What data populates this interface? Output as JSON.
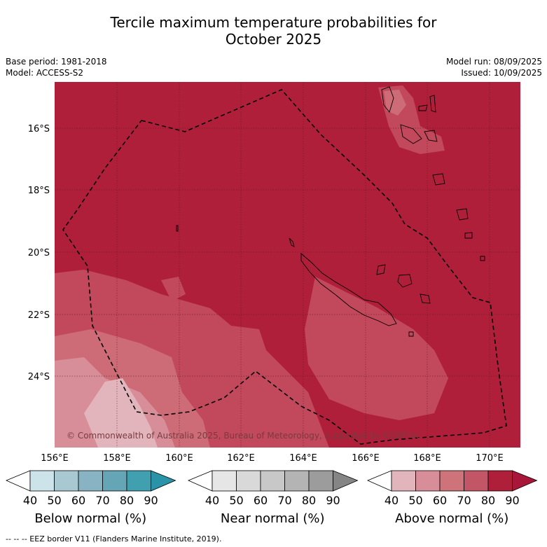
{
  "title_line1": "Tercile maximum temperature probabilities for",
  "title_line2": "October 2025",
  "base_period": "Base period: 1981-2018",
  "model": "Model: ACCESS-S2",
  "model_run": "Model run: 08/09/2025",
  "issued": "Issued: 10/09/2025",
  "copyright": "© Commonwealth of Australia 2025, Bureau of Meteorology, supported by COSPPac",
  "lon_labels": [
    "156°E",
    "158°E",
    "160°E",
    "162°E",
    "164°E",
    "166°E",
    "168°E",
    "170°E"
  ],
  "lat_labels": [
    "16°S",
    "18°S",
    "20°S",
    "22°S",
    "24°S"
  ],
  "colorbars": [
    {
      "label": "Below normal (%)",
      "ticks": [
        "40",
        "50",
        "60",
        "70",
        "80",
        "90"
      ],
      "colors": [
        "#ffffff",
        "#cde3ea",
        "#a8c9d1",
        "#87b3c2",
        "#66a5b5",
        "#41a0b0",
        "#2a93a8"
      ]
    },
    {
      "label": "Near normal (%)",
      "ticks": [
        "40",
        "50",
        "60",
        "70",
        "80",
        "90"
      ],
      "colors": [
        "#ffffff",
        "#e6e6e6",
        "#d9d9d9",
        "#c8c8c8",
        "#b4b4b4",
        "#9c9c9c",
        "#858585"
      ]
    },
    {
      "label": "Above normal (%)",
      "ticks": [
        "40",
        "50",
        "60",
        "70",
        "80",
        "90"
      ],
      "colors": [
        "#ffffff",
        "#e2b5bd",
        "#d78e98",
        "#cd7379",
        "#c25566",
        "#b01f3a",
        "#a8163a"
      ]
    }
  ],
  "footer": "--  --  -- EEZ border V11 (Flanders Marine Institute, 2019).",
  "colors": {
    "above_90": "#b01f3a",
    "above_80": "#c2485c",
    "above_70": "#cd6b76",
    "above_60": "#d78e98",
    "above_50": "#e2b5bd",
    "eez": "#000000"
  }
}
